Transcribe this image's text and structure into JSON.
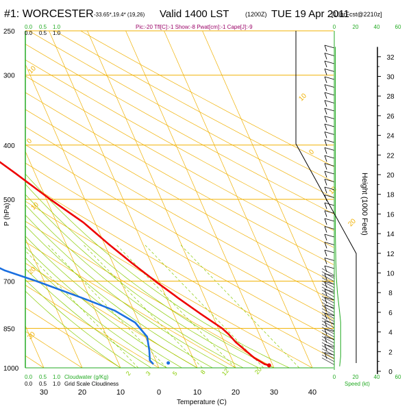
{
  "title": {
    "station": "#1: WORCESTER",
    "coords": "-33.65*,19.4* (19,26)",
    "valid": "Valid 1400 LST",
    "utc": "(1200Z)",
    "date": "TUE 19 Apr 2011",
    "forecast": "[18hrFcst@2210z]"
  },
  "indices": "Pic:-20 Tfl[C]:-1 Show:-8 Pwat[cm]:-1 Cape[J]:-9",
  "labels": {
    "pressure_axis": "P (hPa)",
    "temp_axis": "Temperature (C)",
    "height_axis": "Height (1000 Feet)",
    "speed_label": "Speed (kt)",
    "cloud_top_label": "Cloudwater (g/Kg)",
    "cloud_bottom_label": "Grid Scale Cloudiness",
    "cloud_scale_top": [
      "0.0",
      "0.5",
      "1.0"
    ],
    "cloud_scale_bottom": [
      "0.0",
      "0.5",
      "1.0"
    ]
  },
  "colors": {
    "temperature": "#ee0000",
    "dewpoint": "#1a6fe0",
    "isobar": "#f0b000",
    "dry_adiabat": "#f0b000",
    "moist_adiabat": "#88cc00",
    "mixing_ratio": "#88cc00",
    "axis_green": "#22aa22",
    "indices": "#990066"
  },
  "chart_data": {
    "type": "skew-t",
    "pressure_levels": [
      250,
      300,
      400,
      500,
      700,
      850,
      1000
    ],
    "temperature_ticks": [
      30,
      20,
      10,
      0,
      10,
      20,
      30,
      40
    ],
    "height_ticks": [
      0,
      2,
      4,
      6,
      8,
      10,
      12,
      14,
      16,
      18,
      20,
      22,
      24,
      26,
      28,
      30,
      32
    ],
    "speed_ticks": [
      0,
      20,
      40,
      60
    ],
    "dry_adiabat_labels": [
      {
        "text": "10"
      },
      {
        "text": "0"
      },
      {
        "text": "10"
      },
      {
        "text": "20"
      },
      {
        "text": "30"
      },
      {
        "text": "10"
      },
      {
        "text": "0"
      },
      {
        "text": "10"
      },
      {
        "text": "20"
      }
    ],
    "mixing_ratio_labels": [
      "2",
      "3",
      "5",
      "8",
      "12",
      "20"
    ],
    "temperature_profile": [
      {
        "p": 990,
        "t": 29.0
      },
      {
        "p": 985,
        "t": 28.0
      },
      {
        "p": 960,
        "t": 26.0
      },
      {
        "p": 930,
        "t": 24.5
      },
      {
        "p": 900,
        "t": 23.0
      },
      {
        "p": 870,
        "t": 22.0
      },
      {
        "p": 850,
        "t": 21.0
      },
      {
        "p": 800,
        "t": 17.0
      },
      {
        "p": 750,
        "t": 13.0
      },
      {
        "p": 700,
        "t": 9.0
      },
      {
        "p": 650,
        "t": 5.0
      },
      {
        "p": 600,
        "t": 1.0
      },
      {
        "p": 550,
        "t": -3.0
      },
      {
        "p": 500,
        "t": -9.0
      },
      {
        "p": 450,
        "t": -15.0
      },
      {
        "p": 400,
        "t": -22.0
      },
      {
        "p": 350,
        "t": -31.0
      },
      {
        "p": 300,
        "t": -40.0
      },
      {
        "p": 270,
        "t": -46.0
      },
      {
        "p": 255,
        "t": -50.0
      }
    ],
    "dewpoint_profile": [
      {
        "p": 985,
        "t": -1.0
      },
      {
        "p": 970,
        "t": -1.5
      },
      {
        "p": 930,
        "t": -0.5
      },
      {
        "p": 880,
        "t": 0.5
      },
      {
        "p": 830,
        "t": -1.0
      },
      {
        "p": 790,
        "t": -5.0
      },
      {
        "p": 750,
        "t": -12.0
      },
      {
        "p": 700,
        "t": -22.0
      },
      {
        "p": 670,
        "t": -29.0
      },
      {
        "p": 640,
        "t": -34.0
      },
      {
        "p": 610,
        "t": -37.0
      },
      {
        "p": 580,
        "t": -38.0
      },
      {
        "p": 550,
        "t": -37.0
      },
      {
        "p": 520,
        "t": -35.0
      },
      {
        "p": 500,
        "t": -33.0
      },
      {
        "p": 460,
        "t": -34.0
      },
      {
        "p": 420,
        "t": -40.0
      },
      {
        "p": 380,
        "t": -49.0
      },
      {
        "p": 340,
        "t": -56.0
      },
      {
        "p": 310,
        "t": -60.0
      },
      {
        "p": 290,
        "t": -64.0
      },
      {
        "p": 270,
        "t": -70.0
      },
      {
        "p": 255,
        "t": -74.0
      }
    ],
    "surface_dewpoint": {
      "p": 980,
      "t": 3.0
    },
    "wind_speed_profile": [
      {
        "h": 0.5,
        "s": 5
      },
      {
        "h": 1.5,
        "s": 6
      },
      {
        "h": 3,
        "s": 6
      },
      {
        "h": 5,
        "s": 6
      },
      {
        "h": 6,
        "s": 5
      },
      {
        "h": 7,
        "s": 4
      },
      {
        "h": 8,
        "s": 3
      },
      {
        "h": 9.5,
        "s": 2
      },
      {
        "h": 11,
        "s": 1.5
      },
      {
        "h": 14,
        "s": 1
      },
      {
        "h": 18,
        "s": 1
      },
      {
        "h": 33,
        "s": 1
      }
    ]
  }
}
